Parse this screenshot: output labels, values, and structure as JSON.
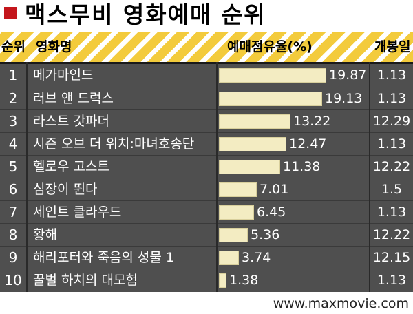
{
  "title": "맥스무비 영화예매 순위",
  "source": "www.maxmovie.com",
  "colors": {
    "accent_square": "#c4161c",
    "header_stripe": "#f3cb3c",
    "table_bg": "#4f4f4f",
    "bar_fill": "#f3ecc2"
  },
  "headers": {
    "rank": "순위",
    "title": "영화명",
    "share": "예매점유율(%)",
    "release": "개봉일"
  },
  "chart_data": {
    "type": "bar",
    "orientation": "horizontal",
    "title": "맥스무비 영화예매 순위",
    "ylabel": "예매점유율(%)",
    "categories": [
      "메가마인드",
      "러브 앤 드럭스",
      "라스트 갓파더",
      "시즌 오브 더 위치:마녀호송단",
      "헬로우 고스트",
      "심장이 뛴다",
      "세인트 클라우드",
      "황해",
      "해리포터와 죽음의 성물 1",
      "꿀벌 하치의 대모험"
    ],
    "values": [
      19.87,
      19.13,
      13.22,
      12.47,
      11.38,
      7.01,
      6.45,
      5.36,
      3.74,
      1.38
    ],
    "value_labels": [
      "19.87",
      "19.13",
      "13.22",
      "12.47",
      "11.38",
      "7.01",
      "6.45",
      "5.36",
      "3.74",
      "1.38"
    ],
    "ranks": [
      "1",
      "2",
      "3",
      "4",
      "5",
      "6",
      "7",
      "8",
      "9",
      "10"
    ],
    "release_dates": [
      "1.13",
      "1.13",
      "12.29",
      "1.13",
      "12.22",
      "1.5",
      "1.13",
      "12.22",
      "12.15",
      "1.13"
    ]
  }
}
